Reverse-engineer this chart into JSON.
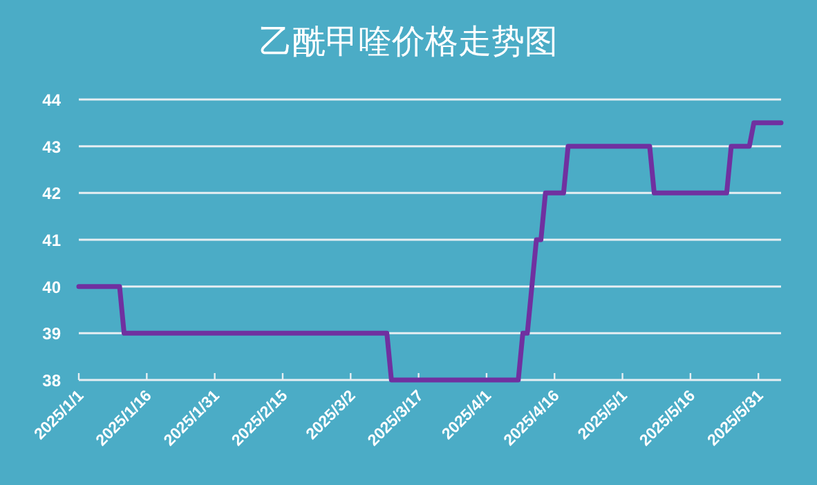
{
  "chart_data": {
    "type": "line",
    "title": "乙酰甲喹价格走势图",
    "x": [
      "2025-01-01",
      "2025-01-10",
      "2025-01-11",
      "2025-03-10",
      "2025-03-11",
      "2025-04-08",
      "2025-04-09",
      "2025-04-10",
      "2025-04-12",
      "2025-04-13",
      "2025-04-14",
      "2025-04-18",
      "2025-04-19",
      "2025-05-07",
      "2025-05-08",
      "2025-05-24",
      "2025-05-25",
      "2025-05-29",
      "2025-05-30",
      "2025-06-05"
    ],
    "series": [
      {
        "color": "#7030a0",
        "values": [
          40,
          40,
          39,
          39,
          38,
          38,
          39,
          39,
          41,
          41,
          42,
          42,
          43,
          43,
          42,
          42,
          43,
          43,
          43.5,
          43.5
        ]
      }
    ],
    "xlim": [
      "2025-01-01",
      "2025-06-05"
    ],
    "xticks": [
      {
        "value": "2025-01-01",
        "label": "2025/1/1"
      },
      {
        "value": "2025-01-16",
        "label": "2025/1/16"
      },
      {
        "value": "2025-01-31",
        "label": "2025/1/31"
      },
      {
        "value": "2025-02-15",
        "label": "2025/2/15"
      },
      {
        "value": "2025-03-02",
        "label": "2025/3/2"
      },
      {
        "value": "2025-03-17",
        "label": "2025/3/17"
      },
      {
        "value": "2025-04-01",
        "label": "2025/4/1"
      },
      {
        "value": "2025-04-16",
        "label": "2025/4/16"
      },
      {
        "value": "2025-05-01",
        "label": "2025/5/1"
      },
      {
        "value": "2025-05-16",
        "label": "2025/5/16"
      },
      {
        "value": "2025-05-31",
        "label": "2025/5/31"
      }
    ],
    "ylim": [
      38,
      44
    ],
    "yticks": [
      38,
      39,
      40,
      41,
      42,
      43,
      44
    ],
    "grid": "y",
    "marker": "none",
    "line_style": "solid"
  }
}
